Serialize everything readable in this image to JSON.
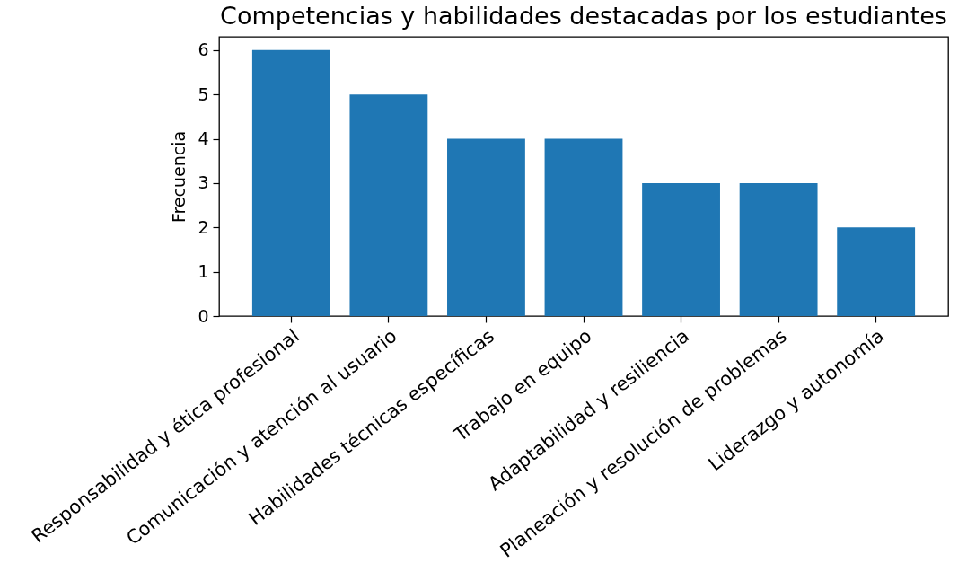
{
  "chart_data": {
    "type": "bar",
    "title": "Competencias y habilidades destacadas por los estudiantes",
    "ylabel": "Frecuencia",
    "categories": [
      "Responsabilidad y ética profesional",
      "Comunicación y atención al usuario",
      "Habilidades técnicas específicas",
      "Trabajo en equipo",
      "Adaptabilidad y resiliencia",
      "Planeación y resolución de problemas",
      "Liderazgo y autonomía"
    ],
    "values": [
      6,
      5,
      4,
      4,
      3,
      3,
      2
    ],
    "color": "#1f77b4",
    "ylim": [
      0,
      6.3
    ],
    "yticks": [
      0,
      1,
      2,
      3,
      4,
      5,
      6
    ]
  }
}
